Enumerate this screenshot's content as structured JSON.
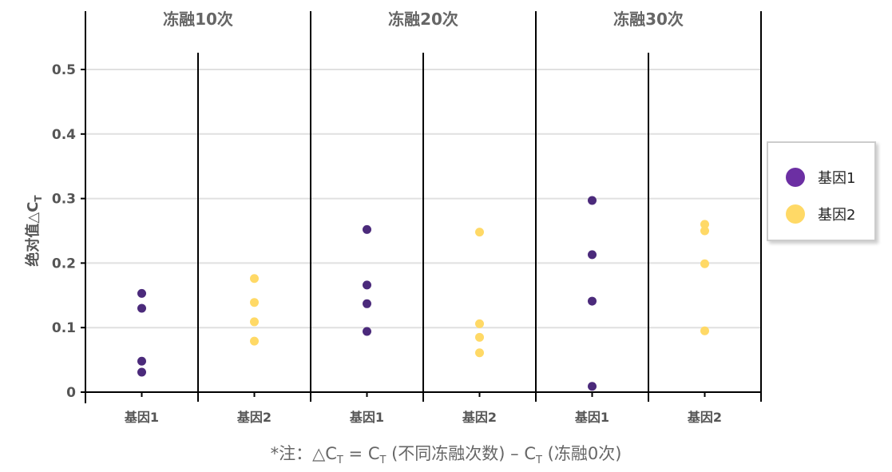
{
  "chart_data": {
    "type": "scatter",
    "ylabel": "绝对值△C",
    "ylabel_sub": "T",
    "ylim": [
      0,
      0.5
    ],
    "yticks": [
      0,
      0.1,
      0.2,
      0.3,
      0.4,
      0.5
    ],
    "ytick_labels": [
      "0",
      "0.1",
      "0.2",
      "0.3",
      "0.4",
      "0.5"
    ],
    "panels": [
      "冻融10次",
      "冻融20次",
      "冻融30次"
    ],
    "categories": [
      "基因1",
      "基因2"
    ],
    "grid": true,
    "legend_position": "right",
    "series": [
      {
        "name": "基因1",
        "color": "#4b2a7b",
        "legend_color": "#6c2fa3",
        "values": [
          [
            0.153,
            0.13,
            0.048,
            0.031
          ],
          [
            0.252,
            0.166,
            0.137,
            0.094
          ],
          [
            0.297,
            0.213,
            0.141,
            0.009
          ]
        ]
      },
      {
        "name": "基因2",
        "color": "#ffd966",
        "legend_color": "#ffd966",
        "values": [
          [
            0.176,
            0.139,
            0.109,
            0.079
          ],
          [
            0.248,
            0.106,
            0.085,
            0.061
          ],
          [
            0.26,
            0.25,
            0.199,
            0.095
          ]
        ]
      }
    ]
  },
  "note": {
    "prefix": "*注：△C",
    "sub1": "T",
    "mid": " = C",
    "sub2": "T",
    "mid2": " (不同冻融次数) – C",
    "sub3": "T",
    "end": " (冻融0次)"
  }
}
